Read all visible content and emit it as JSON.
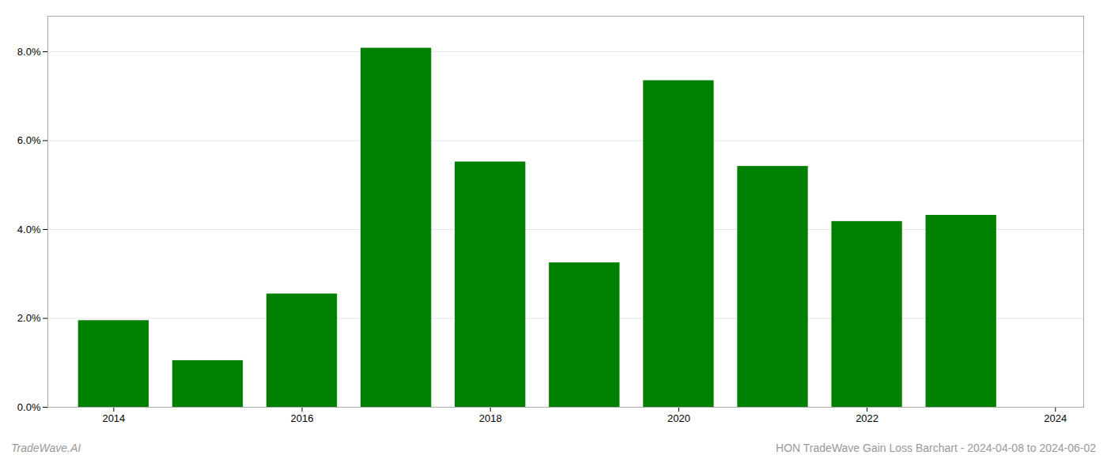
{
  "chart_data": {
    "type": "bar",
    "x": [
      2014,
      2015,
      2016,
      2017,
      2018,
      2019,
      2020,
      2021,
      2022,
      2023
    ],
    "values": [
      0.0195,
      0.0105,
      0.0255,
      0.0808,
      0.0552,
      0.0325,
      0.0735,
      0.0542,
      0.0418,
      0.0432
    ],
    "color": "#008000",
    "xlim": [
      2013.3,
      2024.3
    ],
    "xticks": [
      2014,
      2016,
      2018,
      2020,
      2022,
      2024
    ],
    "ylim": [
      0,
      0.088
    ],
    "yticks": [
      {
        "value": 0.0,
        "label": "0.0%"
      },
      {
        "value": 0.02,
        "label": "2.0%"
      },
      {
        "value": 0.04,
        "label": "4.0%"
      },
      {
        "value": 0.06,
        "label": "6.0%"
      },
      {
        "value": 0.08,
        "label": "8.0%"
      }
    ],
    "grid": true,
    "annotations": [
      "TradeWave.AI",
      "HON TradeWave Gain Loss Barchart - 2024-04-08 to 2024-06-02"
    ]
  }
}
